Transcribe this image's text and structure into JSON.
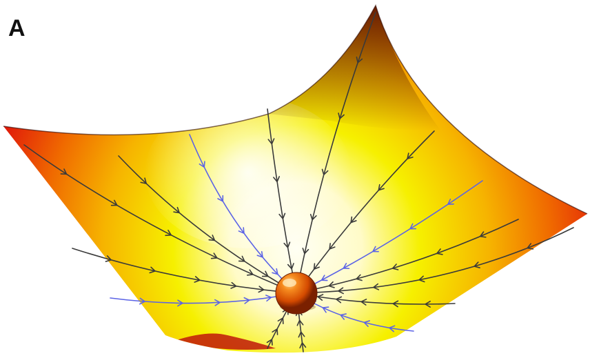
{
  "figure": {
    "panel_label": "A",
    "colors": {
      "surface_center": "#fffff4",
      "surface_mid": "#f6f000",
      "surface_outer": "#f08a00",
      "surface_rim": "#e0180a",
      "surface_dark": "#6a0a04",
      "trajectory_black": "#3a3a3a",
      "trajectory_blue": "#5b63e6",
      "ball": "#e05a00"
    },
    "icons": [
      "attractor-ball",
      "trajectory-arrow"
    ]
  }
}
